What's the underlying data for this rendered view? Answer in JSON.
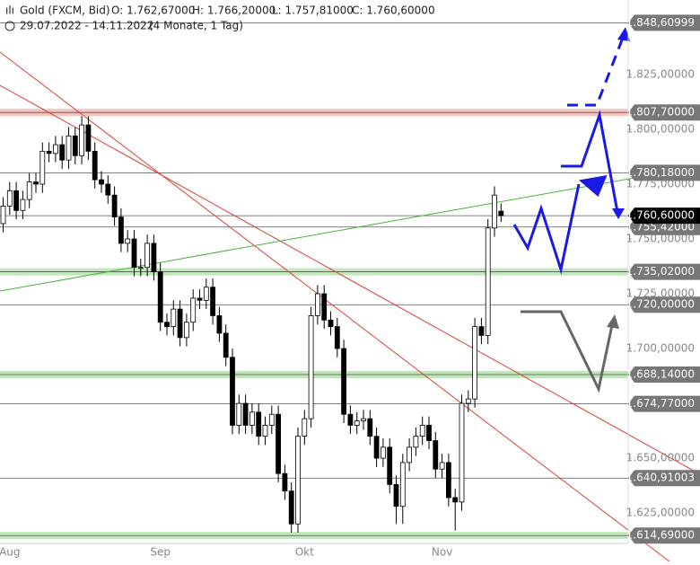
{
  "chart_data": {
    "type": "candlestick",
    "instrument": "Gold (FXCM, Bid)",
    "ohlc_header": [
      "O: 1.762,67000",
      "H: 1.766,20000",
      "L: 1.757,81000",
      "C: 1.760,60000"
    ],
    "date_range": "29.07.2022 - 14.11.2022",
    "duration": "(4 Monate, 1 Tag)",
    "up_color": "#ffffff",
    "down_color": "#000000",
    "categories": [
      null,
      "Aug",
      null,
      null,
      null,
      null,
      null,
      null,
      null,
      null,
      null,
      null,
      null,
      null,
      null,
      null,
      null,
      null,
      null,
      null,
      null,
      null,
      null,
      null,
      "Sep",
      null,
      null,
      null,
      null,
      null,
      null,
      null,
      null,
      null,
      null,
      null,
      null,
      null,
      null,
      null,
      null,
      null,
      null,
      null,
      null,
      null,
      "Okt",
      null,
      null,
      null,
      null,
      null,
      null,
      null,
      null,
      null,
      null,
      null,
      null,
      null,
      null,
      null,
      null,
      null,
      null,
      null,
      null,
      "Nov",
      null,
      null,
      null,
      null,
      null,
      null,
      null,
      null,
      null
    ],
    "open": [
      1757,
      1765,
      1772,
      1763,
      1768,
      1776,
      1775,
      1790,
      1789,
      1793,
      1786,
      1797,
      1788,
      1802,
      1790,
      1777,
      1775,
      1770,
      1760,
      1748,
      1750,
      1737,
      1737,
      1748,
      1735,
      1712,
      1710,
      1718,
      1705,
      1712,
      1723,
      1722,
      1728,
      1715,
      1707,
      1696,
      1665,
      1675,
      1665,
      1671,
      1660,
      1665,
      1670,
      1643,
      1635,
      1620,
      1660,
      1668,
      1715,
      1725,
      1713,
      1710,
      1700,
      1670,
      1665,
      1667,
      1668,
      1660,
      1650,
      1655,
      1638,
      1628,
      1648,
      1655,
      1660,
      1665,
      1658,
      1645,
      1648,
      1632,
      1630,
      1675,
      1677,
      1710,
      1706,
      1755,
      1762.67
    ],
    "high": [
      1769,
      1776,
      1776,
      1772,
      1780,
      1780,
      1794,
      1794,
      1797,
      1797,
      1801,
      1801,
      1806,
      1806,
      1794,
      1781,
      1779,
      1774,
      1764,
      1754,
      1754,
      1741,
      1752,
      1752,
      1739,
      1716,
      1722,
      1722,
      1716,
      1727,
      1727,
      1732,
      1732,
      1719,
      1711,
      1700,
      1679,
      1679,
      1675,
      1675,
      1669,
      1674,
      1674,
      1647,
      1639,
      1664,
      1672,
      1719,
      1729,
      1729,
      1717,
      1714,
      1704,
      1674,
      1671,
      1672,
      1672,
      1664,
      1659,
      1659,
      1642,
      1652,
      1659,
      1664,
      1669,
      1669,
      1662,
      1652,
      1652,
      1636,
      1679,
      1681,
      1714,
      1714,
      1759,
      1774,
      1766.2
    ],
    "low": [
      1753,
      1761,
      1759,
      1759,
      1764,
      1771,
      1771,
      1785,
      1785,
      1782,
      1782,
      1784,
      1784,
      1786,
      1773,
      1771,
      1766,
      1756,
      1744,
      1744,
      1733,
      1733,
      1733,
      1731,
      1708,
      1706,
      1706,
      1701,
      1701,
      1708,
      1718,
      1718,
      1711,
      1703,
      1692,
      1661,
      1661,
      1661,
      1661,
      1656,
      1656,
      1661,
      1639,
      1631,
      1616,
      1616,
      1656,
      1664,
      1711,
      1709,
      1706,
      1696,
      1666,
      1661,
      1661,
      1663,
      1656,
      1646,
      1646,
      1634,
      1620,
      1620,
      1644,
      1651,
      1656,
      1654,
      1641,
      1641,
      1628,
      1617,
      1626,
      1671,
      1673,
      1702,
      1702,
      1751,
      1757.81
    ],
    "close": [
      1765,
      1772,
      1763,
      1768,
      1776,
      1775,
      1790,
      1789,
      1793,
      1786,
      1797,
      1788,
      1802,
      1790,
      1777,
      1775,
      1770,
      1760,
      1748,
      1750,
      1737,
      1737,
      1748,
      1735,
      1712,
      1710,
      1718,
      1705,
      1712,
      1723,
      1722,
      1728,
      1715,
      1707,
      1696,
      1665,
      1675,
      1665,
      1671,
      1660,
      1665,
      1670,
      1643,
      1635,
      1620,
      1660,
      1668,
      1715,
      1725,
      1713,
      1710,
      1700,
      1670,
      1665,
      1667,
      1668,
      1660,
      1650,
      1655,
      1638,
      1628,
      1648,
      1655,
      1660,
      1665,
      1658,
      1645,
      1648,
      1632,
      1630,
      1675,
      1677,
      1710,
      1706,
      1755,
      1770,
      1760.6
    ],
    "ylim": [
      1602.9,
      1859
    ],
    "yticks": [
      {
        "value": 1825,
        "label": "1.825,00000"
      },
      {
        "value": 1800,
        "label": "1.800,00000"
      },
      {
        "value": 1775,
        "label": "1.775,00000"
      },
      {
        "value": 1750,
        "label": "1.750,00000"
      },
      {
        "value": 1725,
        "label": "1.725,00000"
      },
      {
        "value": 1700,
        "label": "1.700,00000"
      },
      {
        "value": 1650,
        "label": "1.650,00000"
      },
      {
        "value": 1625,
        "label": "1.625,00000"
      }
    ],
    "levels": [
      {
        "value": 1848.60999,
        "label": "1.848,60999",
        "color": "#777777"
      },
      {
        "value": 1807.7,
        "label": "1.807,70000",
        "color": "#777777",
        "band": "#f6c2bd"
      },
      {
        "value": 1780.18,
        "label": "1.780,18000",
        "color": "#777777"
      },
      {
        "value": 1755.42,
        "label": "1.755,42000",
        "color": "#777777"
      },
      {
        "value": 1735.02,
        "label": "1.735,02000",
        "color": "#777777",
        "band": "#bfe8b8"
      },
      {
        "value": 1720,
        "label": "1.720,00000",
        "color": "#777777"
      },
      {
        "value": 1688.14,
        "label": "1.688,14000",
        "color": "#777777",
        "band": "#bfe8b8"
      },
      {
        "value": 1674.77,
        "label": "1.674,77000",
        "color": "#777777"
      },
      {
        "value": 1640.91003,
        "label": "1.640,91003",
        "color": "#777777"
      },
      {
        "value": 1614.69,
        "label": "1.614,69000",
        "color": "#777777",
        "band": "#bfe8b8"
      },
      {
        "value": 1760.6,
        "label": "1.760,60000",
        "color": "#000000"
      }
    ]
  }
}
